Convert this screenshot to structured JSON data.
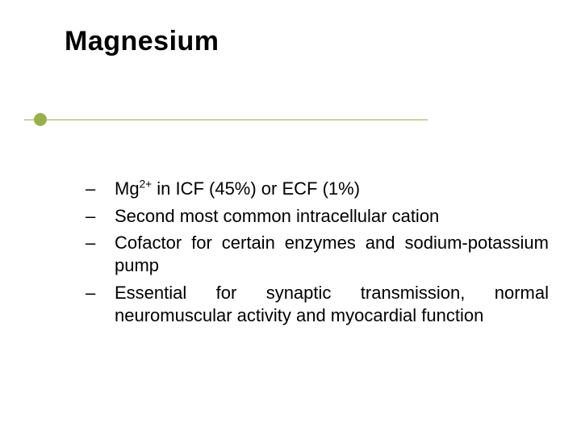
{
  "slide": {
    "title": "Magnesium",
    "background_color": "#ffffff",
    "title_color": "#000000",
    "title_fontsize": 34,
    "title_fontweight": "bold",
    "accent_color": "#98b147",
    "rule_color": "#98b147",
    "body_fontsize": 22,
    "body_color": "#000000",
    "dash_char": "–",
    "bullets": [
      {
        "prefix": "Mg",
        "superscript": "2+",
        "suffix": " in ICF (45%) or ECF (1%)",
        "justify": false
      },
      {
        "text": "Second most common intracellular cation",
        "justify": false
      },
      {
        "text": "Cofactor for certain enzymes and sodium-potassium pump",
        "justify": true
      },
      {
        "text": "Essential for synaptic transmission, normal neuromuscular activity and myocardial function",
        "justify": true
      }
    ]
  }
}
